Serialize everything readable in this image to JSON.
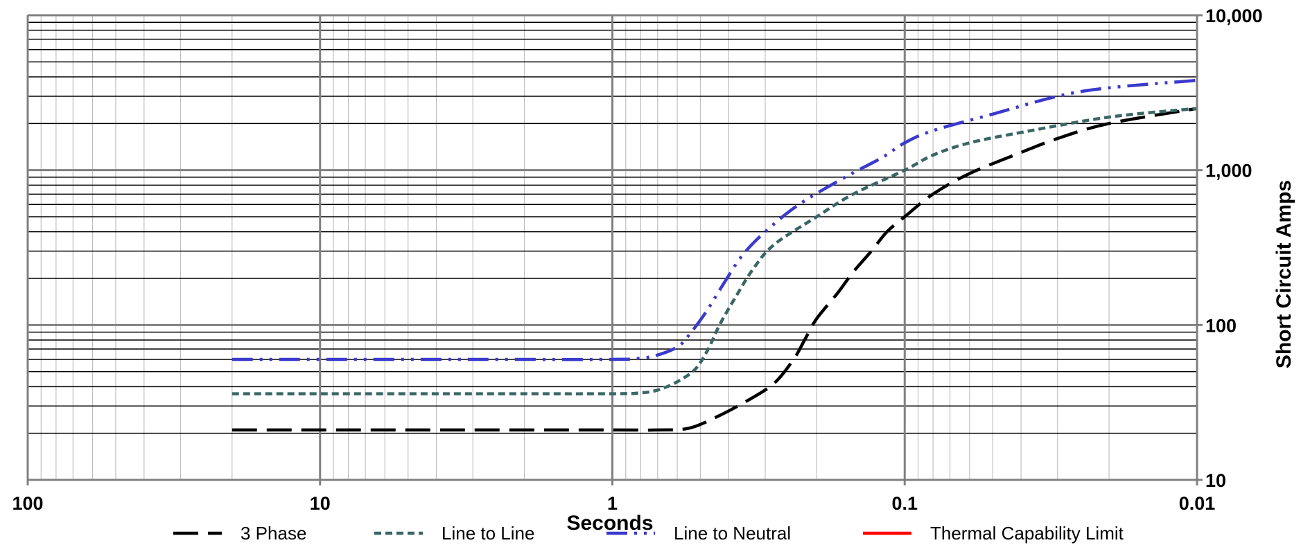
{
  "chart_data": {
    "type": "line",
    "xlabel": "Seconds",
    "ylabel": "Short Circuit Amps",
    "x_scale": "log",
    "x_reversed": true,
    "y_scale": "log",
    "xlim": [
      100,
      0.01
    ],
    "ylim": [
      10,
      10000
    ],
    "grid": true,
    "legend_position": "bottom",
    "x_ticks": [
      100,
      10,
      1,
      0.1,
      0.01
    ],
    "x_tick_labels": [
      "100",
      "10",
      "1",
      "0.1",
      "0.01"
    ],
    "y_ticks": [
      10,
      100,
      1000,
      10000
    ],
    "y_tick_labels": [
      "10",
      "100",
      "1,000",
      "10,000"
    ],
    "series": [
      {
        "name": "3 Phase",
        "color": "#000000",
        "dash": "long-dash",
        "points": [
          [
            20,
            21
          ],
          [
            10,
            21
          ],
          [
            3,
            21
          ],
          [
            1,
            21
          ],
          [
            0.7,
            21
          ],
          [
            0.55,
            21.5
          ],
          [
            0.45,
            25
          ],
          [
            0.35,
            32
          ],
          [
            0.28,
            42
          ],
          [
            0.24,
            60
          ],
          [
            0.22,
            80
          ],
          [
            0.2,
            110
          ],
          [
            0.17,
            160
          ],
          [
            0.15,
            220
          ],
          [
            0.13,
            300
          ],
          [
            0.115,
            400
          ],
          [
            0.1,
            500
          ],
          [
            0.08,
            700
          ],
          [
            0.06,
            950
          ],
          [
            0.04,
            1300
          ],
          [
            0.03,
            1600
          ],
          [
            0.02,
            2000
          ],
          [
            0.01,
            2500
          ]
        ]
      },
      {
        "name": "Line to Line",
        "color": "#3a6666",
        "dash": "short-dash",
        "points": [
          [
            20,
            36
          ],
          [
            10,
            36
          ],
          [
            3,
            36
          ],
          [
            1,
            36
          ],
          [
            0.8,
            36.5
          ],
          [
            0.7,
            38
          ],
          [
            0.6,
            43
          ],
          [
            0.52,
            52
          ],
          [
            0.47,
            70
          ],
          [
            0.43,
            100
          ],
          [
            0.38,
            150
          ],
          [
            0.33,
            230
          ],
          [
            0.28,
            330
          ],
          [
            0.2,
            500
          ],
          [
            0.15,
            700
          ],
          [
            0.1,
            1000
          ],
          [
            0.08,
            1250
          ],
          [
            0.06,
            1500
          ],
          [
            0.04,
            1750
          ],
          [
            0.02,
            2200
          ],
          [
            0.01,
            2500
          ]
        ]
      },
      {
        "name": "Line to Neutral",
        "color": "#3a3acc",
        "dash": "dash-dot-dot",
        "points": [
          [
            20,
            60
          ],
          [
            10,
            60
          ],
          [
            3,
            60
          ],
          [
            1,
            60
          ],
          [
            0.8,
            61
          ],
          [
            0.7,
            64
          ],
          [
            0.6,
            72
          ],
          [
            0.55,
            85
          ],
          [
            0.48,
            120
          ],
          [
            0.42,
            180
          ],
          [
            0.36,
            280
          ],
          [
            0.3,
            400
          ],
          [
            0.23,
            600
          ],
          [
            0.16,
            900
          ],
          [
            0.12,
            1200
          ],
          [
            0.1,
            1500
          ],
          [
            0.08,
            1800
          ],
          [
            0.05,
            2300
          ],
          [
            0.03,
            3000
          ],
          [
            0.02,
            3400
          ],
          [
            0.01,
            3800
          ]
        ]
      },
      {
        "name": "Thermal Capability Limit",
        "color": "#ff0000",
        "dash": "solid",
        "points": []
      }
    ]
  }
}
